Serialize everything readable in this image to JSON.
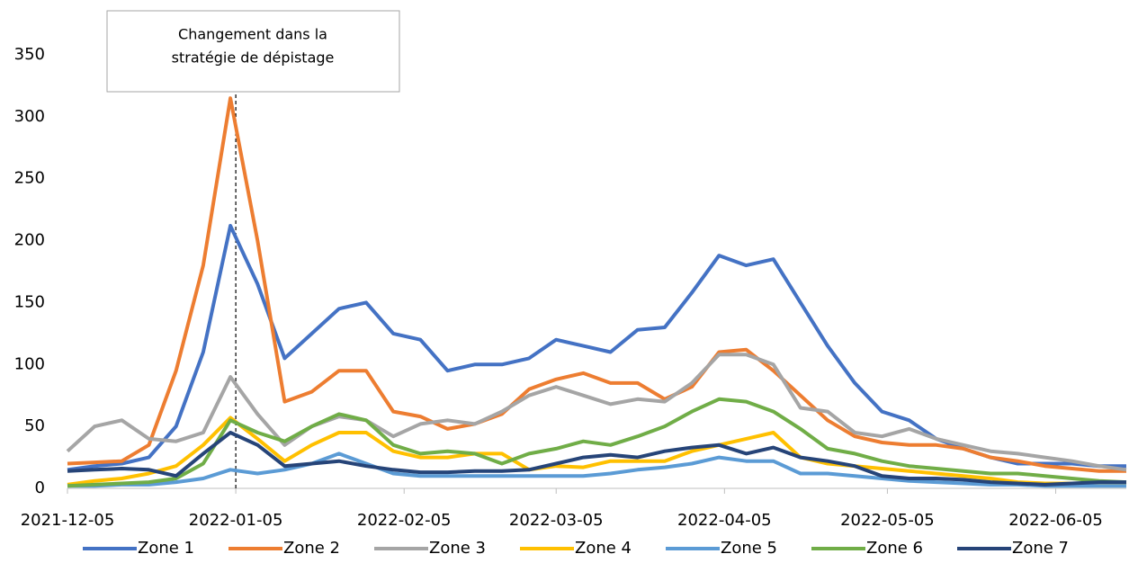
{
  "chart_data": {
    "type": "line",
    "x": [
      "2021-12-05",
      "2021-12-10",
      "2021-12-15",
      "2021-12-20",
      "2021-12-25",
      "2021-12-30",
      "2022-01-04",
      "2022-01-09",
      "2022-01-14",
      "2022-01-19",
      "2022-01-24",
      "2022-01-29",
      "2022-02-03",
      "2022-02-08",
      "2022-02-13",
      "2022-02-18",
      "2022-02-23",
      "2022-02-28",
      "2022-03-05",
      "2022-03-10",
      "2022-03-15",
      "2022-03-20",
      "2022-03-25",
      "2022-03-30",
      "2022-04-04",
      "2022-04-09",
      "2022-04-14",
      "2022-04-19",
      "2022-04-24",
      "2022-04-29",
      "2022-05-04",
      "2022-05-09",
      "2022-05-14",
      "2022-05-19",
      "2022-05-24",
      "2022-05-29",
      "2022-06-03",
      "2022-06-08",
      "2022-06-13",
      "2022-06-18"
    ],
    "series": [
      {
        "name": "Zone 1",
        "color": "#4472c4",
        "values": [
          15,
          18,
          20,
          25,
          50,
          110,
          212,
          165,
          105,
          125,
          145,
          150,
          125,
          120,
          95,
          100,
          100,
          105,
          120,
          115,
          110,
          128,
          130,
          158,
          188,
          180,
          185,
          150,
          115,
          85,
          62,
          55,
          40,
          32,
          25,
          20,
          20,
          20,
          18,
          18
        ]
      },
      {
        "name": "Zone 2",
        "color": "#ed7d31",
        "values": [
          20,
          21,
          22,
          35,
          95,
          180,
          315,
          200,
          70,
          78,
          95,
          95,
          62,
          58,
          48,
          52,
          60,
          80,
          88,
          93,
          85,
          85,
          72,
          82,
          110,
          112,
          95,
          75,
          55,
          42,
          37,
          35,
          35,
          32,
          25,
          22,
          18,
          16,
          14,
          14
        ]
      },
      {
        "name": "Zone 3",
        "color": "#a5a5a5",
        "values": [
          30,
          50,
          55,
          40,
          38,
          45,
          90,
          60,
          35,
          50,
          58,
          55,
          42,
          52,
          55,
          52,
          62,
          75,
          82,
          75,
          68,
          72,
          70,
          85,
          108,
          108,
          100,
          65,
          62,
          45,
          42,
          48,
          40,
          35,
          30,
          28,
          25,
          22,
          18,
          15
        ]
      },
      {
        "name": "Zone 4",
        "color": "#ffc000",
        "values": [
          3,
          6,
          8,
          12,
          18,
          35,
          57,
          40,
          22,
          35,
          45,
          45,
          30,
          25,
          25,
          28,
          28,
          15,
          18,
          17,
          22,
          22,
          22,
          30,
          35,
          40,
          45,
          25,
          20,
          18,
          16,
          14,
          12,
          10,
          8,
          5,
          4,
          4,
          4,
          3
        ]
      },
      {
        "name": "Zone 5",
        "color": "#5b9bd5",
        "values": [
          2,
          2,
          3,
          3,
          5,
          8,
          15,
          12,
          15,
          20,
          28,
          20,
          12,
          10,
          10,
          10,
          10,
          10,
          10,
          10,
          12,
          15,
          17,
          20,
          25,
          22,
          22,
          12,
          12,
          10,
          8,
          6,
          5,
          4,
          3,
          3,
          2,
          2,
          2,
          2
        ]
      },
      {
        "name": "Zone 6",
        "color": "#70ad47",
        "values": [
          2,
          3,
          4,
          5,
          8,
          20,
          55,
          45,
          38,
          50,
          60,
          55,
          35,
          28,
          30,
          28,
          20,
          28,
          32,
          38,
          35,
          42,
          50,
          62,
          72,
          70,
          62,
          48,
          32,
          28,
          22,
          18,
          16,
          14,
          12,
          12,
          10,
          8,
          6,
          5
        ]
      },
      {
        "name": "Zone 7",
        "color": "#264478",
        "values": [
          14,
          15,
          16,
          15,
          10,
          28,
          45,
          35,
          18,
          20,
          22,
          18,
          15,
          13,
          13,
          14,
          14,
          15,
          20,
          25,
          27,
          25,
          30,
          33,
          35,
          28,
          33,
          25,
          22,
          18,
          10,
          8,
          8,
          7,
          5,
          4,
          3,
          4,
          5,
          5
        ]
      }
    ],
    "xlim": [
      "2021-12-05",
      "2022-06-18"
    ],
    "xticks": [
      "2021-12-05",
      "2022-01-05",
      "2022-02-05",
      "2022-03-05",
      "2022-04-05",
      "2022-05-05",
      "2022-06-05"
    ],
    "ylim": [
      0,
      350
    ],
    "yticks": [
      0,
      50,
      100,
      150,
      200,
      250,
      300,
      350
    ],
    "grid": false,
    "legend": "bottom",
    "annotation": {
      "text": [
        "Changement dans la",
        "stratégie de dépistage"
      ],
      "x": "2022-01-05"
    }
  }
}
